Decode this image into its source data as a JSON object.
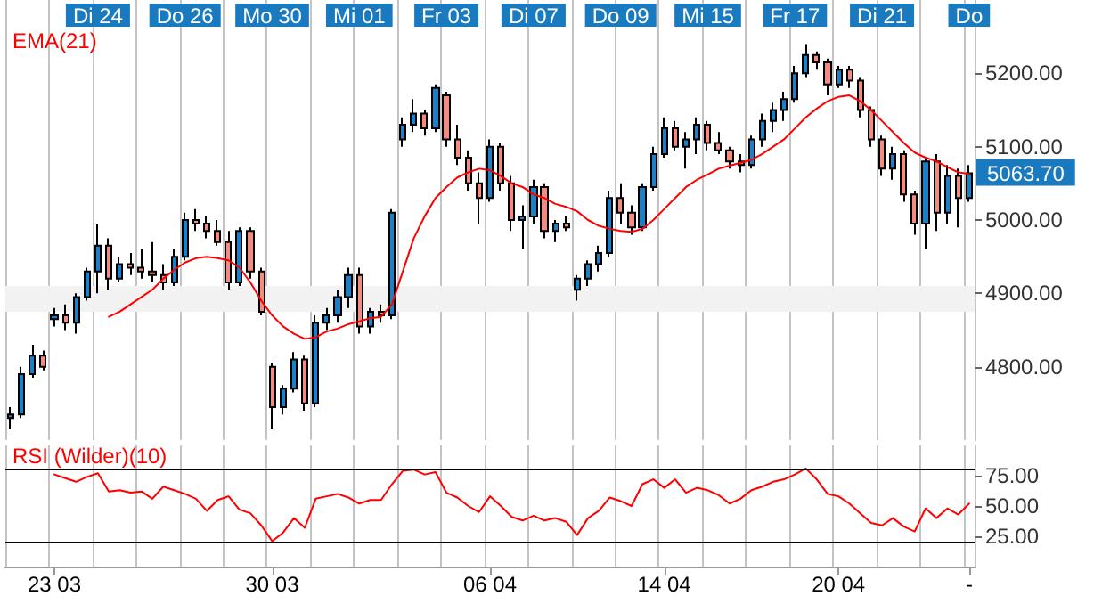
{
  "chart_data": [
    {
      "type": "candlestick",
      "categories": [
        null,
        null,
        null,
        null,
        null,
        null,
        null,
        null,
        "Di 24",
        null,
        null,
        null,
        null,
        null,
        null,
        null,
        "Do 26",
        null,
        null,
        null,
        null,
        null,
        null,
        null,
        "Mo 30",
        null,
        null,
        null,
        null,
        null,
        null,
        null,
        "Mi 01",
        null,
        null,
        null,
        null,
        null,
        null,
        null,
        "Fr 03",
        null,
        null,
        null,
        null,
        null,
        null,
        null,
        "Di 07",
        null,
        null,
        null,
        null,
        null,
        null,
        null,
        "Do 09",
        null,
        null,
        null,
        null,
        null,
        null,
        null,
        "Mi 15",
        null,
        null,
        null,
        null,
        null,
        null,
        null,
        "Fr 17",
        null,
        null,
        null,
        null,
        null,
        null,
        null,
        "Di 21",
        null,
        null,
        null,
        null,
        null,
        null,
        null,
        "Do"
      ],
      "ohlc": [
        [
          4730,
          4745,
          4715,
          4735
        ],
        [
          4735,
          4800,
          4730,
          4790
        ],
        [
          4790,
          4830,
          4785,
          4815
        ],
        [
          4815,
          4822,
          4795,
          4800
        ],
        [
          4865,
          4880,
          4855,
          4870
        ],
        [
          4870,
          4885,
          4850,
          4860
        ],
        [
          4860,
          4900,
          4845,
          4895
        ],
        [
          4895,
          4935,
          4890,
          4930
        ],
        [
          4930,
          4995,
          4900,
          4965
        ],
        [
          4965,
          4975,
          4905,
          4920
        ],
        [
          4920,
          4950,
          4915,
          4940
        ],
        [
          4940,
          4955,
          4925,
          4935
        ],
        [
          4935,
          4960,
          4920,
          4930
        ],
        [
          4930,
          4970,
          4915,
          4925
        ],
        [
          4925,
          4940,
          4905,
          4915
        ],
        [
          4915,
          4960,
          4910,
          4950
        ],
        [
          4950,
          5010,
          4945,
          5000
        ],
        [
          5000,
          5015,
          4985,
          4995
        ],
        [
          4995,
          5005,
          4975,
          4985
        ],
        [
          4985,
          5000,
          4965,
          4970
        ],
        [
          4970,
          4985,
          4905,
          4915
        ],
        [
          4915,
          4990,
          4910,
          4985
        ],
        [
          4985,
          4990,
          4920,
          4930
        ],
        [
          4930,
          4935,
          4870,
          4875
        ],
        [
          4800,
          4805,
          4715,
          4745
        ],
        [
          4745,
          4775,
          4735,
          4770
        ],
        [
          4770,
          4820,
          4765,
          4810
        ],
        [
          4810,
          4815,
          4740,
          4750
        ],
        [
          4750,
          4870,
          4745,
          4860
        ],
        [
          4860,
          4880,
          4850,
          4870
        ],
        [
          4870,
          4905,
          4860,
          4895
        ],
        [
          4895,
          4935,
          4880,
          4925
        ],
        [
          4925,
          4935,
          4845,
          4855
        ],
        [
          4855,
          4880,
          4845,
          4875
        ],
        [
          4875,
          4885,
          4860,
          4870
        ],
        [
          4870,
          5015,
          4865,
          5010
        ],
        [
          5110,
          5140,
          5100,
          5130
        ],
        [
          5130,
          5165,
          5120,
          5145
        ],
        [
          5145,
          5150,
          5115,
          5125
        ],
        [
          5125,
          5185,
          5120,
          5180
        ],
        [
          5170,
          5175,
          5100,
          5110
        ],
        [
          5110,
          5130,
          5075,
          5085
        ],
        [
          5085,
          5095,
          5040,
          5050
        ],
        [
          5050,
          5065,
          4995,
          5030
        ],
        [
          5030,
          5110,
          5025,
          5100
        ],
        [
          5100,
          5105,
          5040,
          5050
        ],
        [
          5050,
          5060,
          4985,
          5000
        ],
        [
          5000,
          5020,
          4960,
          5005
        ],
        [
          5005,
          5055,
          4995,
          5045
        ],
        [
          5045,
          5050,
          4975,
          4985
        ],
        [
          4985,
          5000,
          4970,
          4995
        ],
        [
          4995,
          5005,
          4985,
          4990
        ],
        [
          4905,
          4925,
          4890,
          4920
        ],
        [
          4920,
          4945,
          4910,
          4940
        ],
        [
          4940,
          4965,
          4930,
          4955
        ],
        [
          4955,
          5040,
          4950,
          5030
        ],
        [
          5030,
          5050,
          4995,
          5010
        ],
        [
          5010,
          5020,
          4980,
          4990
        ],
        [
          4990,
          5050,
          4985,
          5045
        ],
        [
          5045,
          5100,
          5040,
          5090
        ],
        [
          5090,
          5140,
          5085,
          5125
        ],
        [
          5125,
          5135,
          5095,
          5100
        ],
        [
          5100,
          5120,
          5070,
          5110
        ],
        [
          5110,
          5140,
          5090,
          5130
        ],
        [
          5130,
          5135,
          5095,
          5105
        ],
        [
          5105,
          5120,
          5090,
          5095
        ],
        [
          5095,
          5100,
          5070,
          5080
        ],
        [
          5080,
          5090,
          5065,
          5075
        ],
        [
          5075,
          5115,
          5070,
          5110
        ],
        [
          5110,
          5145,
          5100,
          5135
        ],
        [
          5135,
          5160,
          5120,
          5150
        ],
        [
          5150,
          5175,
          5135,
          5165
        ],
        [
          5165,
          5210,
          5160,
          5200
        ],
        [
          5200,
          5240,
          5195,
          5225
        ],
        [
          5225,
          5230,
          5205,
          5215
        ],
        [
          5215,
          5220,
          5170,
          5185
        ],
        [
          5185,
          5210,
          5180,
          5205
        ],
        [
          5205,
          5210,
          5180,
          5190
        ],
        [
          5190,
          5195,
          5140,
          5150
        ],
        [
          5150,
          5155,
          5100,
          5110
        ],
        [
          5110,
          5115,
          5060,
          5070
        ],
        [
          5070,
          5100,
          5055,
          5090
        ],
        [
          5090,
          5095,
          5025,
          5035
        ],
        [
          5035,
          5040,
          4980,
          4995
        ],
        [
          4995,
          5085,
          4960,
          5080
        ],
        [
          5080,
          5090,
          4985,
          5010
        ],
        [
          5010,
          5075,
          4995,
          5060
        ],
        [
          5060,
          5070,
          4990,
          5030
        ],
        [
          5030,
          5075,
          5025,
          5063.7
        ]
      ],
      "colors": [
        "#1f7fc4",
        "#1f7fc4",
        "#1f7fc4",
        "#f28b82",
        "#1f7fc4",
        "#f28b82",
        "#1f7fc4",
        "#1f7fc4",
        "#1f7fc4",
        "#f28b82",
        "#1f7fc4",
        "#f28b82",
        "#f28b82",
        "#f28b82",
        "#f28b82",
        "#1f7fc4",
        "#1f7fc4",
        "#f28b82",
        "#f28b82",
        "#f28b82",
        "#f28b82",
        "#1f7fc4",
        "#f28b82",
        "#f28b82",
        "#f28b82",
        "#1f7fc4",
        "#1f7fc4",
        "#f28b82",
        "#1f7fc4",
        "#1f7fc4",
        "#1f7fc4",
        "#1f7fc4",
        "#f28b82",
        "#1f7fc4",
        "#f28b82",
        "#1f7fc4",
        "#1f7fc4",
        "#1f7fc4",
        "#f28b82",
        "#1f7fc4",
        "#f28b82",
        "#f28b82",
        "#f28b82",
        "#f28b82",
        "#1f7fc4",
        "#f28b82",
        "#f28b82",
        "#1f7fc4",
        "#1f7fc4",
        "#f28b82",
        "#1f7fc4",
        "#f28b82",
        "#1f7fc4",
        "#1f7fc4",
        "#1f7fc4",
        "#1f7fc4",
        "#f28b82",
        "#f28b82",
        "#1f7fc4",
        "#1f7fc4",
        "#1f7fc4",
        "#f28b82",
        "#1f7fc4",
        "#1f7fc4",
        "#f28b82",
        "#f28b82",
        "#f28b82",
        "#f28b82",
        "#1f7fc4",
        "#1f7fc4",
        "#1f7fc4",
        "#1f7fc4",
        "#1f7fc4",
        "#1f7fc4",
        "#f28b82",
        "#f28b82",
        "#1f7fc4",
        "#f28b82",
        "#f28b82",
        "#f28b82",
        "#f28b82",
        "#1f7fc4",
        "#f28b82",
        "#f28b82",
        "#1f7fc4",
        "#f28b82",
        "#1f7fc4",
        "#f28b82",
        "#1f7fc4"
      ],
      "series": [
        {
          "type": "line",
          "name": "EMA(21)",
          "color": "#ff0000",
          "values": [
            null,
            null,
            null,
            null,
            null,
            null,
            null,
            null,
            null,
            4868,
            4875,
            4885,
            4895,
            4905,
            4920,
            4932,
            4942,
            4948,
            4950,
            4948,
            4945,
            4935,
            4915,
            4890,
            4870,
            4855,
            4845,
            4838,
            4840,
            4848,
            4852,
            4858,
            4862,
            4866,
            4868,
            4885,
            4930,
            4975,
            5005,
            5030,
            5045,
            5058,
            5065,
            5070,
            5068,
            5060,
            5050,
            5045,
            5035,
            5030,
            5022,
            5018,
            5012,
            5000,
            4992,
            4988,
            4985,
            4984,
            4988,
            5000,
            5015,
            5030,
            5045,
            5055,
            5062,
            5070,
            5074,
            5078,
            5082,
            5090,
            5100,
            5110,
            5125,
            5140,
            5152,
            5162,
            5168,
            5170,
            5162,
            5150,
            5135,
            5120,
            5105,
            5092,
            5085,
            5080,
            5072,
            5065,
            5063
          ]
        }
      ],
      "ylim": [
        4700,
        5300
      ],
      "yticks": [
        {
          "value": 4800,
          "label": "4800.00"
        },
        {
          "value": 4900,
          "label": "4900.00"
        },
        {
          "value": 5000,
          "label": "5000.00"
        },
        {
          "value": 5100,
          "label": "5100.00"
        },
        {
          "value": 5200,
          "label": "5200.00"
        }
      ],
      "bands": [
        {
          "axis": "y",
          "from": 4875,
          "to": 4910,
          "color": "#f2f2f2"
        }
      ],
      "annotations": [
        "5063.70"
      ],
      "grid": "x",
      "legend": "top left",
      "marker": "none"
    },
    {
      "type": "line",
      "categories": [
        null,
        null,
        null,
        null,
        "23 03",
        null,
        null,
        null,
        null,
        null,
        null,
        null,
        null,
        null,
        null,
        null,
        null,
        null,
        null,
        null,
        null,
        null,
        null,
        null,
        "30 03",
        null,
        null,
        null,
        null,
        null,
        null,
        null,
        null,
        null,
        null,
        null,
        null,
        null,
        null,
        null,
        null,
        null,
        null,
        null,
        "06 04",
        null,
        null,
        null,
        null,
        null,
        null,
        null,
        null,
        null,
        null,
        null,
        null,
        null,
        null,
        null,
        "14 04",
        null,
        null,
        null,
        null,
        null,
        null,
        null,
        null,
        null,
        null,
        null,
        null,
        null,
        null,
        null,
        "20 04",
        null,
        null,
        null,
        null,
        null,
        null,
        null,
        null,
        null,
        null,
        null,
        "-"
      ],
      "series": [
        {
          "name": "RSI (Wilder)(10)",
          "color": "#ff0000",
          "values": [
            null,
            null,
            null,
            null,
            76,
            73,
            70,
            74,
            77,
            62,
            63,
            61,
            62,
            56,
            66,
            63,
            60,
            56,
            46,
            55,
            58,
            47,
            44,
            34,
            21,
            28,
            40,
            32,
            56,
            58,
            60,
            57,
            52,
            55,
            55,
            68,
            79,
            80,
            76,
            78,
            61,
            57,
            50,
            45,
            58,
            50,
            41,
            38,
            42,
            38,
            40,
            37,
            26,
            40,
            46,
            57,
            54,
            50,
            68,
            72,
            65,
            72,
            61,
            65,
            63,
            59,
            52,
            56,
            63,
            66,
            70,
            72,
            76,
            81,
            72,
            60,
            58,
            52,
            44,
            36,
            34,
            40,
            33,
            29,
            48,
            40,
            48,
            43,
            52
          ]
        }
      ],
      "ylim": [
        0,
        100
      ],
      "yticks": [
        {
          "value": 25,
          "label": "25.00"
        },
        {
          "value": 50,
          "label": "50.00"
        },
        {
          "value": 75,
          "label": "75.00"
        }
      ],
      "ref_lines": [
        {
          "axis": "y",
          "value": 80,
          "color": "#000000"
        },
        {
          "axis": "y",
          "value": 20,
          "color": "#000000"
        }
      ],
      "grid": "x",
      "legend": "top left",
      "marker": "none"
    }
  ]
}
